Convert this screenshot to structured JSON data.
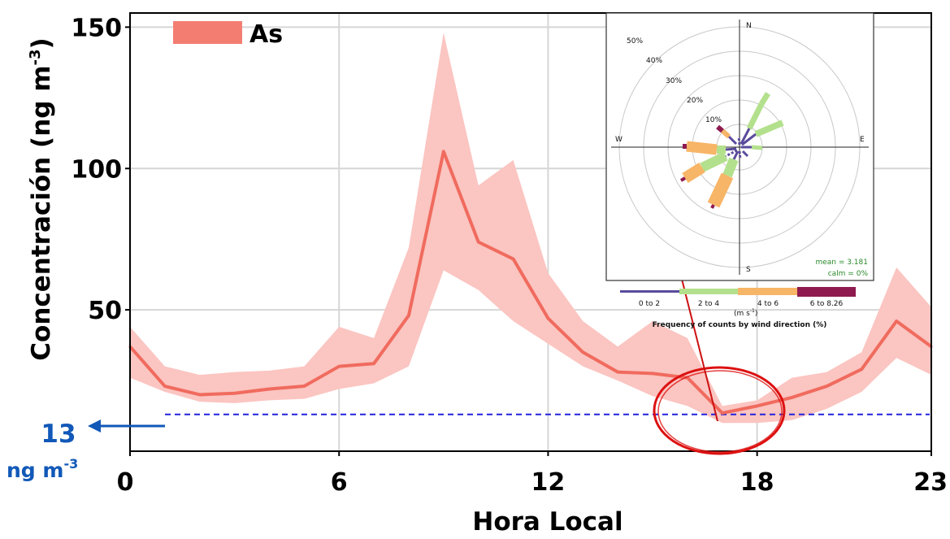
{
  "chart_data": {
    "type": "line",
    "x": [
      0,
      1,
      2,
      3,
      4,
      5,
      6,
      7,
      8,
      9,
      10,
      11,
      12,
      13,
      14,
      15,
      16,
      17,
      18,
      19,
      20,
      21,
      22,
      23
    ],
    "series": [
      {
        "name": "As",
        "values": [
          37,
          23,
          20,
          20.5,
          22,
          23,
          30,
          31,
          48,
          106,
          74,
          68,
          47,
          35,
          28,
          27.5,
          26,
          13.5,
          16,
          19,
          23,
          29,
          46,
          37
        ],
        "lower": [
          26,
          21,
          17.5,
          17,
          18,
          18.5,
          22,
          24,
          30,
          64,
          57,
          46,
          38,
          30,
          25,
          19.5,
          16,
          10,
          10,
          11,
          15,
          21,
          33,
          27
        ],
        "upper": [
          44,
          30,
          27,
          28,
          28.5,
          30,
          44,
          40,
          72,
          148,
          94,
          103,
          63,
          46,
          37,
          46,
          40,
          16,
          18,
          26,
          28,
          35,
          65,
          51
        ]
      }
    ],
    "title": "",
    "xlabel": "Hora Local",
    "ylabel": "Concentración (ng m",
    "ylabel_sup": "-3",
    "ylabel_close": ")",
    "xlim": [
      0,
      23
    ],
    "ylim": [
      0,
      155
    ],
    "xticks": [
      0,
      6,
      12,
      18,
      23
    ],
    "yticks": [
      50,
      100,
      150
    ],
    "grid": true,
    "legend_position": "top-left",
    "colors": {
      "line": "#f06b5e",
      "band": "#fbc5c1",
      "reference": "#2222dd",
      "arrow_blue": "#1158b8",
      "marker_red": "#dd1111"
    },
    "reference_line": {
      "value": 13,
      "label_value": "13",
      "label_unit": "ng m",
      "label_sup": "-3"
    },
    "annotation": {
      "type": "ellipse-and-arrow",
      "highlight_hour": 17
    }
  },
  "windrose": {
    "directions": {
      "north": "N",
      "south": "S",
      "east": "E",
      "west": "W"
    },
    "rings": [
      "10%",
      "20%",
      "30%",
      "40%",
      "50%"
    ],
    "stats": {
      "mean": "mean = 3.181",
      "calm": "calm = 0%"
    },
    "bins": [
      {
        "label": "0 to 2",
        "color": "#5a4b9c"
      },
      {
        "label": "2 to 4",
        "color": "#b3e08c"
      },
      {
        "label": "4 to 6",
        "color": "#f7b567"
      },
      {
        "label": "6 to 8.26",
        "color": "#8e1a4f"
      }
    ],
    "unit_label": "(m s",
    "unit_sup": "-1",
    "unit_close": ")",
    "footer": "Frequency of counts by wind direction (%)"
  }
}
